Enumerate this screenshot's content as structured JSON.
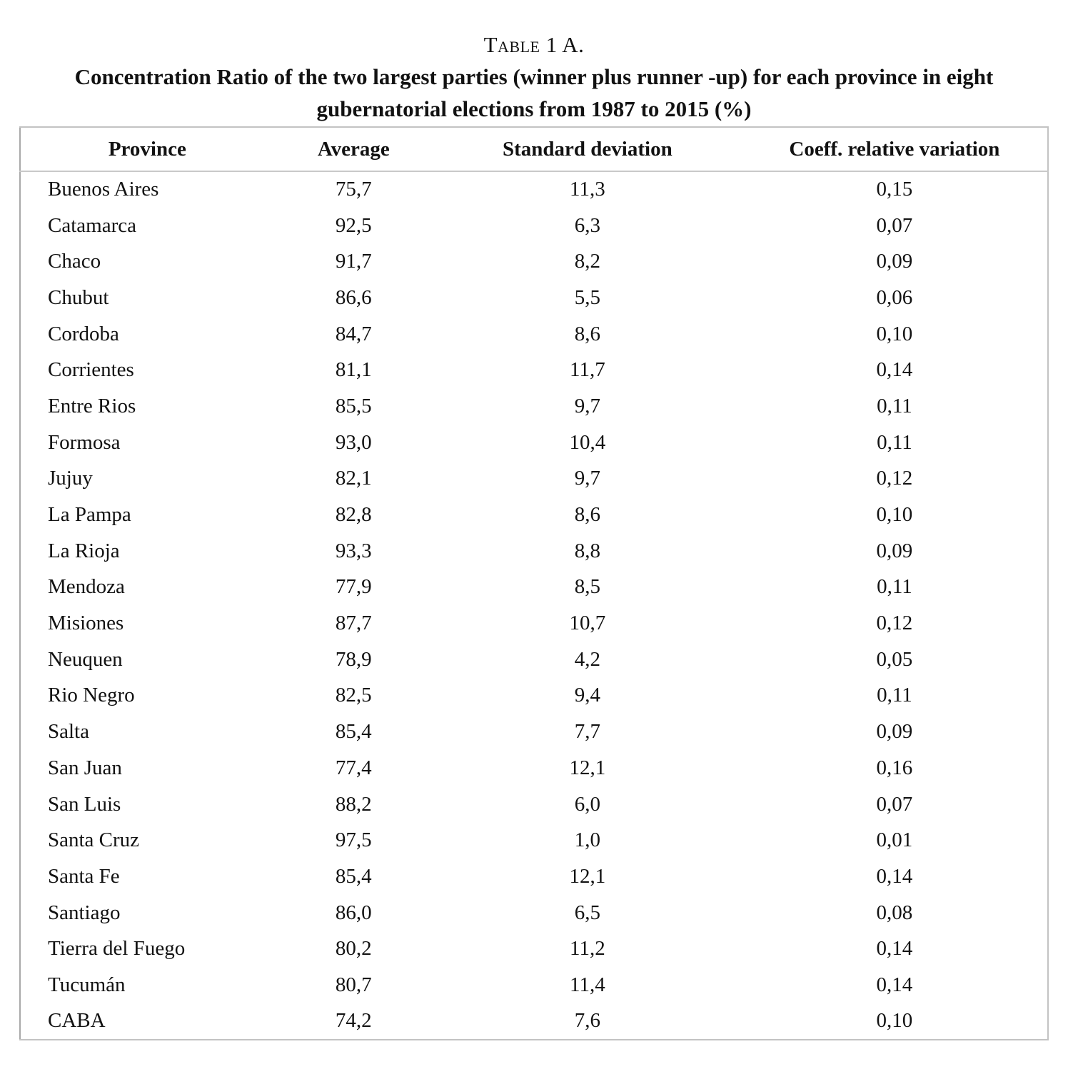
{
  "title": {
    "line1": "Table 1 A.",
    "line2": "Concentration Ratio of the two largest parties (winner plus runner -up) for each province in eight",
    "line3": "gubernatorial elections from 1987 to 2015 (%)"
  },
  "table": {
    "columns": [
      "Province",
      "Average",
      "Standard deviation",
      "Coeff. relative variation"
    ],
    "rows": [
      [
        "Buenos Aires",
        "75,7",
        "11,3",
        "0,15"
      ],
      [
        "Catamarca",
        "92,5",
        "6,3",
        "0,07"
      ],
      [
        "Chaco",
        "91,7",
        "8,2",
        "0,09"
      ],
      [
        "Chubut",
        "86,6",
        "5,5",
        "0,06"
      ],
      [
        "Cordoba",
        "84,7",
        "8,6",
        "0,10"
      ],
      [
        "Corrientes",
        "81,1",
        "11,7",
        "0,14"
      ],
      [
        "Entre Rios",
        "85,5",
        "9,7",
        "0,11"
      ],
      [
        "Formosa",
        "93,0",
        "10,4",
        "0,11"
      ],
      [
        "Jujuy",
        "82,1",
        "9,7",
        "0,12"
      ],
      [
        "La Pampa",
        "82,8",
        "8,6",
        "0,10"
      ],
      [
        "La Rioja",
        "93,3",
        "8,8",
        "0,09"
      ],
      [
        "Mendoza",
        "77,9",
        "8,5",
        "0,11"
      ],
      [
        "Misiones",
        "87,7",
        "10,7",
        "0,12"
      ],
      [
        "Neuquen",
        "78,9",
        "4,2",
        "0,05"
      ],
      [
        "Rio Negro",
        "82,5",
        "9,4",
        "0,11"
      ],
      [
        "Salta",
        "85,4",
        "7,7",
        "0,09"
      ],
      [
        "San Juan",
        "77,4",
        "12,1",
        "0,16"
      ],
      [
        "San Luis",
        "88,2",
        "6,0",
        "0,07"
      ],
      [
        "Santa Cruz",
        "97,5",
        "1,0",
        "0,01"
      ],
      [
        "Santa Fe",
        "85,4",
        "12,1",
        "0,14"
      ],
      [
        "Santiago",
        "86,0",
        "6,5",
        "0,08"
      ],
      [
        "Tierra del Fuego",
        "80,2",
        "11,2",
        "0,14"
      ],
      [
        "Tucumán",
        "80,7",
        "11,4",
        "0,14"
      ],
      [
        "CABA",
        "74,2",
        "7,6",
        "0,10"
      ]
    ]
  },
  "colors": {
    "background": "#ffffff",
    "text": "#121212",
    "border": "#c3c3c3"
  }
}
